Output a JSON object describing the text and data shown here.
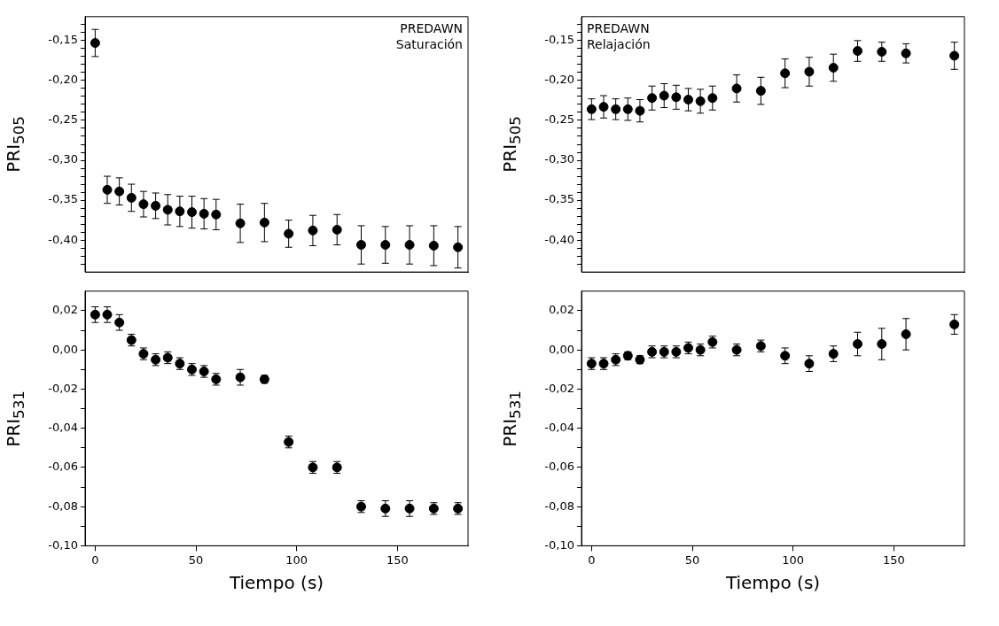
{
  "chart_data": [
    {
      "type": "scatter",
      "ylabel": "PRI$_{505}$",
      "annotations": [
        "PREDAWN",
        "Saturación"
      ],
      "marker": "circle",
      "tick_labels": "y",
      "x": [
        0,
        6,
        12,
        18,
        24,
        30,
        36,
        42,
        48,
        54,
        60,
        72,
        84,
        96,
        108,
        120,
        132,
        144,
        156,
        168,
        180
      ],
      "series": [
        {
          "color": "#000000",
          "values": [
            -0.153,
            -0.337,
            -0.339,
            -0.347,
            -0.355,
            -0.357,
            -0.362,
            -0.364,
            -0.365,
            -0.367,
            -0.368,
            -0.379,
            -0.378,
            -0.392,
            -0.388,
            -0.387,
            -0.406,
            -0.406,
            -0.406,
            -0.407,
            -0.409
          ],
          "errors": [
            0.017,
            0.017,
            0.017,
            0.017,
            0.016,
            0.016,
            0.019,
            0.019,
            0.02,
            0.019,
            0.019,
            0.024,
            0.024,
            0.017,
            0.019,
            0.019,
            0.024,
            0.023,
            0.024,
            0.025,
            0.026
          ]
        }
      ],
      "xlim": [
        -5,
        185
      ],
      "xticks": [
        0,
        50,
        100,
        150
      ],
      "ylim": [
        -0.44,
        -0.12
      ],
      "yticks": [
        {
          "value": -0.13,
          "label": null
        },
        {
          "value": -0.14,
          "label": null
        },
        {
          "value": -0.15,
          "label": "-0,15"
        },
        {
          "value": -0.16,
          "label": null
        },
        {
          "value": -0.17,
          "label": null
        },
        {
          "value": -0.18,
          "label": null
        },
        {
          "value": -0.19,
          "label": null
        },
        {
          "value": -0.2,
          "label": "-0,20"
        },
        {
          "value": -0.21,
          "label": null
        },
        {
          "value": -0.22,
          "label": null
        },
        {
          "value": -0.23,
          "label": null
        },
        {
          "value": -0.24,
          "label": null
        },
        {
          "value": -0.25,
          "label": "-0,25"
        },
        {
          "value": -0.26,
          "label": null
        },
        {
          "value": -0.27,
          "label": null
        },
        {
          "value": -0.28,
          "label": null
        },
        {
          "value": -0.29,
          "label": null
        },
        {
          "value": -0.3,
          "label": "-0,30"
        },
        {
          "value": -0.31,
          "label": null
        },
        {
          "value": -0.32,
          "label": null
        },
        {
          "value": -0.33,
          "label": null
        },
        {
          "value": -0.34,
          "label": null
        },
        {
          "value": -0.35,
          "label": "-0,35"
        },
        {
          "value": -0.36,
          "label": null
        },
        {
          "value": -0.37,
          "label": null
        },
        {
          "value": -0.38,
          "label": null
        },
        {
          "value": -0.39,
          "label": null
        },
        {
          "value": -0.4,
          "label": "-0,40"
        },
        {
          "value": -0.41,
          "label": null
        },
        {
          "value": -0.42,
          "label": null
        },
        {
          "value": -0.43,
          "label": null
        }
      ]
    },
    {
      "type": "scatter",
      "ylabel": "PRI$_{505}$",
      "annotations": [
        "PREDAWN",
        "Relajación"
      ],
      "marker": "circle",
      "tick_labels": "y",
      "x": [
        0,
        6,
        12,
        18,
        24,
        30,
        36,
        42,
        48,
        54,
        60,
        72,
        84,
        96,
        108,
        120,
        132,
        144,
        156,
        180
      ],
      "series": [
        {
          "color": "#000000",
          "values": [
            -0.236,
            -0.233,
            -0.236,
            -0.236,
            -0.238,
            -0.222,
            -0.219,
            -0.221,
            -0.224,
            -0.226,
            -0.222,
            -0.21,
            -0.213,
            -0.191,
            -0.189,
            -0.184,
            -0.163,
            -0.164,
            -0.166,
            -0.169
          ],
          "errors": [
            0.013,
            0.014,
            0.013,
            0.014,
            0.014,
            0.015,
            0.015,
            0.015,
            0.014,
            0.015,
            0.015,
            0.017,
            0.017,
            0.018,
            0.018,
            0.017,
            0.013,
            0.012,
            0.012,
            0.017
          ]
        }
      ],
      "xlim": [
        -5,
        185
      ],
      "xticks": [
        0,
        50,
        100,
        150
      ],
      "ylim": [
        -0.44,
        -0.12
      ],
      "yticks": [
        {
          "value": -0.13,
          "label": null
        },
        {
          "value": -0.14,
          "label": null
        },
        {
          "value": -0.15,
          "label": "-0,15"
        },
        {
          "value": -0.16,
          "label": null
        },
        {
          "value": -0.17,
          "label": null
        },
        {
          "value": -0.18,
          "label": null
        },
        {
          "value": -0.19,
          "label": null
        },
        {
          "value": -0.2,
          "label": "-0,20"
        },
        {
          "value": -0.21,
          "label": null
        },
        {
          "value": -0.22,
          "label": null
        },
        {
          "value": -0.23,
          "label": null
        },
        {
          "value": -0.24,
          "label": null
        },
        {
          "value": -0.25,
          "label": "-0,25"
        },
        {
          "value": -0.26,
          "label": null
        },
        {
          "value": -0.27,
          "label": null
        },
        {
          "value": -0.28,
          "label": null
        },
        {
          "value": -0.29,
          "label": null
        },
        {
          "value": -0.3,
          "label": "-0,30"
        },
        {
          "value": -0.31,
          "label": null
        },
        {
          "value": -0.32,
          "label": null
        },
        {
          "value": -0.33,
          "label": null
        },
        {
          "value": -0.34,
          "label": null
        },
        {
          "value": -0.35,
          "label": "-0,35"
        },
        {
          "value": -0.36,
          "label": null
        },
        {
          "value": -0.37,
          "label": null
        },
        {
          "value": -0.38,
          "label": null
        },
        {
          "value": -0.39,
          "label": null
        },
        {
          "value": -0.4,
          "label": "-0,40"
        },
        {
          "value": -0.41,
          "label": null
        },
        {
          "value": -0.42,
          "label": null
        },
        {
          "value": -0.43,
          "label": null
        }
      ]
    },
    {
      "type": "scatter",
      "xlabel": "Tiempo (s)",
      "ylabel": "PRI$_{531}$",
      "marker": "circle",
      "x": [
        0,
        6,
        12,
        18,
        24,
        30,
        36,
        42,
        48,
        54,
        60,
        72,
        84,
        96,
        108,
        120,
        132,
        144,
        156,
        168,
        180
      ],
      "series": [
        {
          "color": "#000000",
          "values": [
            0.018,
            0.018,
            0.014,
            0.005,
            -0.002,
            -0.005,
            -0.004,
            -0.007,
            -0.01,
            -0.011,
            -0.015,
            -0.014,
            -0.015,
            -0.047,
            -0.06,
            -0.06,
            -0.08,
            -0.081,
            -0.081,
            -0.081,
            -0.081
          ],
          "errors": [
            0.004,
            0.004,
            0.004,
            0.003,
            0.003,
            0.003,
            0.003,
            0.003,
            0.003,
            0.003,
            0.003,
            0.004,
            0.002,
            0.003,
            0.003,
            0.003,
            0.003,
            0.004,
            0.004,
            0.003,
            0.003
          ]
        }
      ],
      "xlim": [
        -5,
        185
      ],
      "xticks": [
        0,
        50,
        100,
        150
      ],
      "ylim": [
        -0.1,
        0.03
      ],
      "yticks": [
        {
          "value": 0.02,
          "label": "0,02"
        },
        {
          "value": 0.01,
          "label": null
        },
        {
          "value": 0,
          "label": "0,00"
        },
        {
          "value": -0.01,
          "label": null
        },
        {
          "value": -0.02,
          "label": "-0,02"
        },
        {
          "value": -0.03,
          "label": null
        },
        {
          "value": -0.04,
          "label": "-0,04"
        },
        {
          "value": -0.05,
          "label": null
        },
        {
          "value": -0.06,
          "label": "-0,06"
        },
        {
          "value": -0.07,
          "label": null
        },
        {
          "value": -0.08,
          "label": "-0,08"
        },
        {
          "value": -0.09,
          "label": null
        },
        {
          "value": -0.1,
          "label": "-0,10"
        }
      ]
    },
    {
      "type": "scatter",
      "xlabel": "Tiempo (s)",
      "ylabel": "PRI$_{531}$",
      "marker": "circle",
      "x": [
        0,
        6,
        12,
        18,
        24,
        30,
        36,
        42,
        48,
        54,
        60,
        72,
        84,
        96,
        108,
        120,
        132,
        144,
        156,
        180
      ],
      "series": [
        {
          "color": "#000000",
          "values": [
            -0.007,
            -0.007,
            -0.005,
            -0.003,
            -0.005,
            -0.001,
            -0.001,
            -0.001,
            0.001,
            0,
            0.004,
            0,
            0.002,
            -0.003,
            -0.007,
            -0.002,
            0.003,
            0.003,
            0.008,
            0.013
          ],
          "errors": [
            0.003,
            0.003,
            0.003,
            0.002,
            0.002,
            0.003,
            0.003,
            0.003,
            0.003,
            0.003,
            0.003,
            0.003,
            0.003,
            0.004,
            0.004,
            0.004,
            0.006,
            0.008,
            0.008,
            0.005
          ]
        }
      ],
      "xlim": [
        -5,
        185
      ],
      "xticks": [
        0,
        50,
        100,
        150
      ],
      "ylim": [
        -0.1,
        0.03
      ],
      "yticks": [
        {
          "value": 0.02,
          "label": "0,02"
        },
        {
          "value": 0.01,
          "label": null
        },
        {
          "value": 0,
          "label": "0,00"
        },
        {
          "value": -0.01,
          "label": null
        },
        {
          "value": -0.02,
          "label": "-0,02"
        },
        {
          "value": -0.03,
          "label": null
        },
        {
          "value": -0.04,
          "label": "-0,04"
        },
        {
          "value": -0.05,
          "label": null
        },
        {
          "value": -0.06,
          "label": "-0,06"
        },
        {
          "value": -0.07,
          "label": null
        },
        {
          "value": -0.08,
          "label": "-0,08"
        },
        {
          "value": -0.09,
          "label": null
        },
        {
          "value": -0.1,
          "label": "-0,10"
        }
      ]
    }
  ]
}
